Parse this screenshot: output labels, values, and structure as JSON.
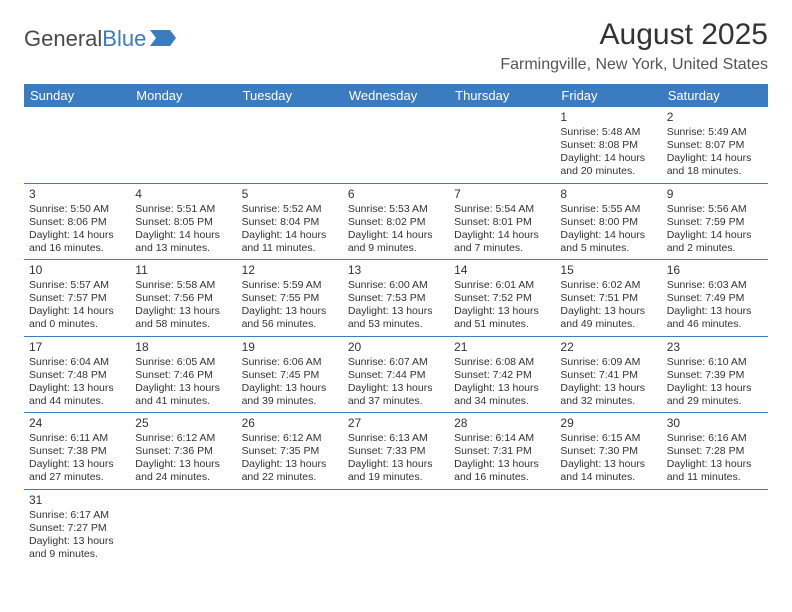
{
  "colors": {
    "header_bg": "#3b7bbf",
    "header_text": "#ffffff",
    "border": "#3b7bbf",
    "body_text": "#333333",
    "logo_gray": "#4a4a4a",
    "logo_blue": "#3b7bbf"
  },
  "logo": {
    "part1": "General",
    "part2": "Blue"
  },
  "title": "August 2025",
  "location": "Farmingville, New York, United States",
  "weekdays": [
    "Sunday",
    "Monday",
    "Tuesday",
    "Wednesday",
    "Thursday",
    "Friday",
    "Saturday"
  ],
  "layout": {
    "first_weekday_index": 5,
    "days_in_month": 31,
    "rows": 6,
    "cols": 7
  },
  "days": {
    "1": {
      "sunrise": "5:48 AM",
      "sunset": "8:08 PM",
      "daylight": "14 hours and 20 minutes."
    },
    "2": {
      "sunrise": "5:49 AM",
      "sunset": "8:07 PM",
      "daylight": "14 hours and 18 minutes."
    },
    "3": {
      "sunrise": "5:50 AM",
      "sunset": "8:06 PM",
      "daylight": "14 hours and 16 minutes."
    },
    "4": {
      "sunrise": "5:51 AM",
      "sunset": "8:05 PM",
      "daylight": "14 hours and 13 minutes."
    },
    "5": {
      "sunrise": "5:52 AM",
      "sunset": "8:04 PM",
      "daylight": "14 hours and 11 minutes."
    },
    "6": {
      "sunrise": "5:53 AM",
      "sunset": "8:02 PM",
      "daylight": "14 hours and 9 minutes."
    },
    "7": {
      "sunrise": "5:54 AM",
      "sunset": "8:01 PM",
      "daylight": "14 hours and 7 minutes."
    },
    "8": {
      "sunrise": "5:55 AM",
      "sunset": "8:00 PM",
      "daylight": "14 hours and 5 minutes."
    },
    "9": {
      "sunrise": "5:56 AM",
      "sunset": "7:59 PM",
      "daylight": "14 hours and 2 minutes."
    },
    "10": {
      "sunrise": "5:57 AM",
      "sunset": "7:57 PM",
      "daylight": "14 hours and 0 minutes."
    },
    "11": {
      "sunrise": "5:58 AM",
      "sunset": "7:56 PM",
      "daylight": "13 hours and 58 minutes."
    },
    "12": {
      "sunrise": "5:59 AM",
      "sunset": "7:55 PM",
      "daylight": "13 hours and 56 minutes."
    },
    "13": {
      "sunrise": "6:00 AM",
      "sunset": "7:53 PM",
      "daylight": "13 hours and 53 minutes."
    },
    "14": {
      "sunrise": "6:01 AM",
      "sunset": "7:52 PM",
      "daylight": "13 hours and 51 minutes."
    },
    "15": {
      "sunrise": "6:02 AM",
      "sunset": "7:51 PM",
      "daylight": "13 hours and 49 minutes."
    },
    "16": {
      "sunrise": "6:03 AM",
      "sunset": "7:49 PM",
      "daylight": "13 hours and 46 minutes."
    },
    "17": {
      "sunrise": "6:04 AM",
      "sunset": "7:48 PM",
      "daylight": "13 hours and 44 minutes."
    },
    "18": {
      "sunrise": "6:05 AM",
      "sunset": "7:46 PM",
      "daylight": "13 hours and 41 minutes."
    },
    "19": {
      "sunrise": "6:06 AM",
      "sunset": "7:45 PM",
      "daylight": "13 hours and 39 minutes."
    },
    "20": {
      "sunrise": "6:07 AM",
      "sunset": "7:44 PM",
      "daylight": "13 hours and 37 minutes."
    },
    "21": {
      "sunrise": "6:08 AM",
      "sunset": "7:42 PM",
      "daylight": "13 hours and 34 minutes."
    },
    "22": {
      "sunrise": "6:09 AM",
      "sunset": "7:41 PM",
      "daylight": "13 hours and 32 minutes."
    },
    "23": {
      "sunrise": "6:10 AM",
      "sunset": "7:39 PM",
      "daylight": "13 hours and 29 minutes."
    },
    "24": {
      "sunrise": "6:11 AM",
      "sunset": "7:38 PM",
      "daylight": "13 hours and 27 minutes."
    },
    "25": {
      "sunrise": "6:12 AM",
      "sunset": "7:36 PM",
      "daylight": "13 hours and 24 minutes."
    },
    "26": {
      "sunrise": "6:12 AM",
      "sunset": "7:35 PM",
      "daylight": "13 hours and 22 minutes."
    },
    "27": {
      "sunrise": "6:13 AM",
      "sunset": "7:33 PM",
      "daylight": "13 hours and 19 minutes."
    },
    "28": {
      "sunrise": "6:14 AM",
      "sunset": "7:31 PM",
      "daylight": "13 hours and 16 minutes."
    },
    "29": {
      "sunrise": "6:15 AM",
      "sunset": "7:30 PM",
      "daylight": "13 hours and 14 minutes."
    },
    "30": {
      "sunrise": "6:16 AM",
      "sunset": "7:28 PM",
      "daylight": "13 hours and 11 minutes."
    },
    "31": {
      "sunrise": "6:17 AM",
      "sunset": "7:27 PM",
      "daylight": "13 hours and 9 minutes."
    }
  },
  "labels": {
    "sunrise_prefix": "Sunrise: ",
    "sunset_prefix": "Sunset: ",
    "daylight_prefix": "Daylight: "
  }
}
